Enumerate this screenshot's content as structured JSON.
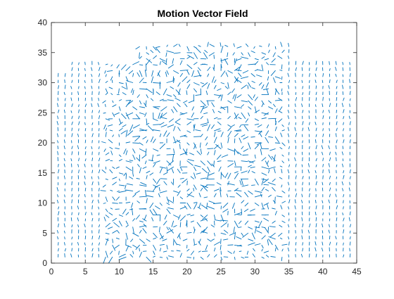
{
  "chart_data": {
    "type": "quiver",
    "title": "Motion Vector Field",
    "xlabel": "",
    "ylabel": "",
    "xlim": [
      0,
      45
    ],
    "ylim": [
      0,
      40
    ],
    "xticks": [
      0,
      5,
      10,
      15,
      20,
      25,
      30,
      35,
      40,
      45
    ],
    "yticks": [
      0,
      5,
      10,
      15,
      20,
      25,
      30,
      35,
      40
    ],
    "grid": false,
    "box": true,
    "grid_x": {
      "start": 1,
      "end": 44,
      "step": 1
    },
    "grid_y": {
      "start": 1,
      "end": 36,
      "step": 1
    },
    "series": [
      {
        "color": "#0072bd",
        "style": "short-arrows",
        "note_vectors": "dense motion field"
      }
    ],
    "colors": {
      "vectors": "#0072bd",
      "axes": "#262626",
      "background": "#ffffff"
    }
  }
}
